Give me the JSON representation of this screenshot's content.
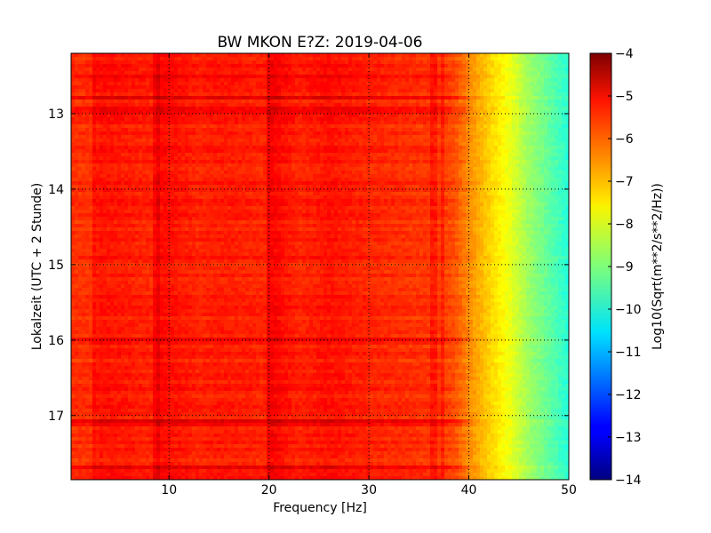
{
  "chart_data": {
    "type": "heatmap",
    "title": "BW MKON E?Z: 2019-04-06",
    "xlabel": "Frequency [Hz]",
    "ylabel": "Lokalzeit (UTC + 2 Stunde)",
    "xlim": [
      0.2,
      50
    ],
    "ylim": [
      12.2,
      17.85
    ],
    "y_inverted": true,
    "xticks": [
      10,
      20,
      30,
      40,
      50
    ],
    "xtick_labels": [
      "10",
      "20",
      "30",
      "40",
      "50"
    ],
    "yticks": [
      13,
      14,
      15,
      16,
      17
    ],
    "ytick_labels": [
      "13",
      "14",
      "15",
      "16",
      "17"
    ],
    "grid": true,
    "colormap": "jet",
    "colorbar": {
      "label": "Log10(Sqrt(m**2/s**2/Hz))",
      "min": -14,
      "max": -4,
      "ticks": [
        -4,
        -5,
        -6,
        -7,
        -8,
        -9,
        -10,
        -11,
        -12,
        -13,
        -14
      ],
      "tick_labels": [
        "−4",
        "−5",
        "−6",
        "−7",
        "−8",
        "−9",
        "−10",
        "−11",
        "−12",
        "−13",
        "−14"
      ]
    },
    "spectrum_profile_db": {
      "frequency_hz": [
        0.2,
        2.5,
        3,
        8.5,
        9,
        13,
        15,
        19.8,
        20.2,
        23,
        26,
        30,
        34,
        37,
        38.5,
        40,
        42,
        44,
        46,
        48,
        50
      ],
      "log10_amplitude": [
        -5.7,
        -5.7,
        -5.4,
        -5.6,
        -5.3,
        -5.6,
        -5.5,
        -5.6,
        -5.2,
        -5.6,
        -5.4,
        -5.6,
        -5.7,
        -5.8,
        -6.0,
        -6.6,
        -7.3,
        -7.9,
        -8.7,
        -9.3,
        -9.9
      ]
    },
    "notable_rows_hours": [
      12.5,
      12.78,
      12.95,
      16.0,
      17.1,
      17.7
    ],
    "notable_lines_hz": [
      2.5,
      8.7,
      20,
      36.5,
      37.3
    ]
  }
}
